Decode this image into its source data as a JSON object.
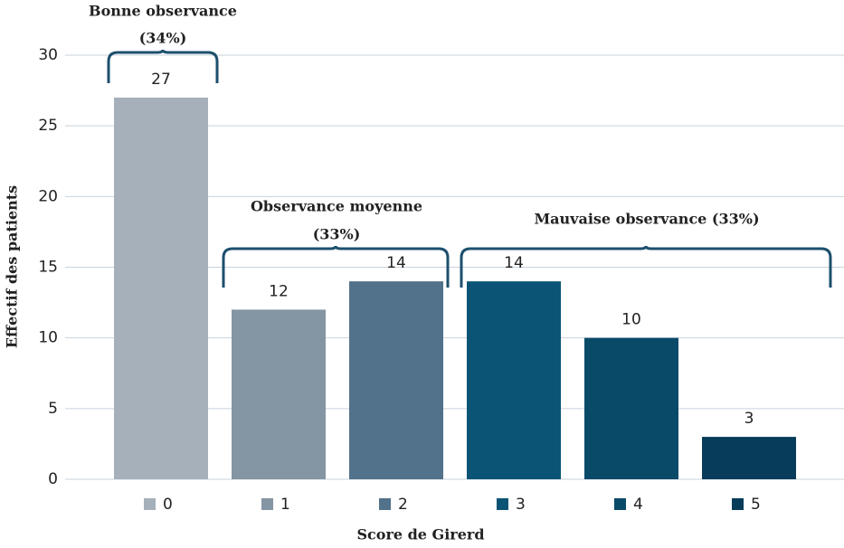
{
  "chart_data": {
    "type": "bar",
    "y_axis_label": "Effectif des patients",
    "x_axis_label": "Score de Girerd",
    "categories": [
      "0",
      "1",
      "2",
      "3",
      "4",
      "5"
    ],
    "values": [
      27,
      12,
      14,
      14,
      10,
      3
    ],
    "colors": [
      "#a5b0ba",
      "#8495a3",
      "#52718a",
      "#0b5475",
      "#0a4a69",
      "#073c5a"
    ],
    "ylim": [
      0,
      30
    ],
    "yticks": [
      0,
      5,
      10,
      15,
      20,
      25,
      30
    ],
    "grid": true,
    "annotations": [
      [
        "Bonne observance",
        "(34%)"
      ],
      [
        "Observance moyenne",
        "(33%)"
      ],
      [
        "Mauvaise observance (33%)"
      ]
    ]
  }
}
